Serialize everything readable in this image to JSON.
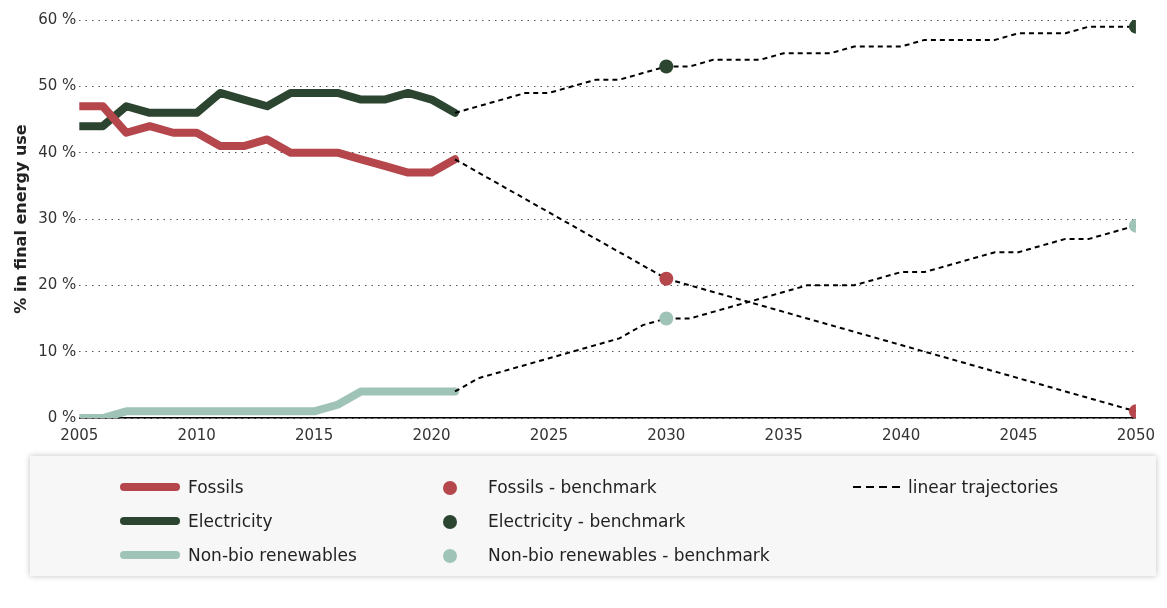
{
  "chart_data": {
    "type": "line",
    "ylabel": "% in final energy use",
    "xlim": [
      2005,
      2050
    ],
    "xticks": [
      2005,
      2010,
      2015,
      2020,
      2025,
      2030,
      2035,
      2040,
      2045,
      2050
    ],
    "ylim": [
      0,
      60
    ],
    "yticks": [
      {
        "value": 0,
        "label": "0 %"
      },
      {
        "value": 10,
        "label": "10 %"
      },
      {
        "value": 20,
        "label": "20 %"
      },
      {
        "value": 30,
        "label": "30 %"
      },
      {
        "value": 40,
        "label": "40 %"
      },
      {
        "value": 50,
        "label": "50 %"
      },
      {
        "value": 60,
        "label": "60 %"
      }
    ],
    "grid": "y",
    "legend": "bottom",
    "series": [
      {
        "name": "Fossils",
        "type": "line",
        "color": "#b5464b",
        "line_style": "solid",
        "marker": "none",
        "x": [
          2005,
          2006,
          2007,
          2008,
          2009,
          2010,
          2011,
          2012,
          2013,
          2014,
          2015,
          2016,
          2017,
          2018,
          2019,
          2020,
          2021
        ],
        "values": [
          47,
          47,
          43,
          44,
          43,
          43,
          41,
          41,
          42,
          40,
          40,
          40,
          39,
          38,
          37,
          37,
          39
        ]
      },
      {
        "name": "Electricity",
        "type": "line",
        "color": "#2c4530",
        "line_style": "solid",
        "marker": "none",
        "x": [
          2005,
          2006,
          2007,
          2008,
          2009,
          2010,
          2011,
          2012,
          2013,
          2014,
          2015,
          2016,
          2017,
          2018,
          2019,
          2020,
          2021
        ],
        "values": [
          44,
          44,
          47,
          46,
          46,
          46,
          49,
          48,
          47,
          49,
          49,
          49,
          48,
          48,
          49,
          48,
          46
        ]
      },
      {
        "name": "Non-bio renewables",
        "type": "line",
        "color": "#9fc4b7",
        "line_style": "solid",
        "marker": "none",
        "x": [
          2005,
          2006,
          2007,
          2008,
          2009,
          2010,
          2011,
          2012,
          2013,
          2014,
          2015,
          2016,
          2017,
          2018,
          2019,
          2020,
          2021
        ],
        "values": [
          0,
          0,
          1,
          1,
          1,
          1,
          1,
          1,
          1,
          1,
          1,
          2,
          4,
          4,
          4,
          4,
          4
        ]
      },
      {
        "name": "Fossils - benchmark",
        "type": "scatter",
        "color": "#b5464b",
        "marker": "circle",
        "x": [
          2030,
          2050
        ],
        "values": [
          21,
          1
        ]
      },
      {
        "name": "Electricity - benchmark",
        "type": "scatter",
        "color": "#2c4530",
        "marker": "circle",
        "x": [
          2030,
          2050
        ],
        "values": [
          53,
          59
        ]
      },
      {
        "name": "Non-bio renewables - benchmark",
        "type": "scatter",
        "color": "#9fc4b7",
        "marker": "circle",
        "x": [
          2030,
          2050
        ],
        "values": [
          15,
          29
        ]
      },
      {
        "name": "linear trajectories",
        "type": "line",
        "color": "#000000",
        "line_style": "dashed",
        "marker": "none",
        "x": [
          2021,
          2022,
          2023,
          2024,
          2025,
          2026,
          2027,
          2028,
          2029,
          2030,
          2031,
          2032,
          2033,
          2034,
          2035,
          2036,
          2037,
          2038,
          2039,
          2040,
          2041,
          2042,
          2043,
          2044,
          2045,
          2046,
          2047,
          2048,
          2049,
          2050
        ],
        "values": [
          46,
          47,
          48,
          49,
          49,
          50,
          51,
          51,
          52,
          53,
          53,
          54,
          54,
          54,
          55,
          55,
          55,
          56,
          56,
          56,
          57,
          57,
          57,
          57,
          58,
          58,
          58,
          59,
          59,
          59
        ]
      },
      {
        "type": "line",
        "color": "#000000",
        "line_style": "dashed",
        "marker": "none",
        "x": [
          2021,
          2022,
          2023,
          2024,
          2025,
          2026,
          2027,
          2028,
          2029,
          2030,
          2031,
          2032,
          2033,
          2034,
          2035,
          2036,
          2037,
          2038,
          2039,
          2040,
          2041,
          2042,
          2043,
          2044,
          2045,
          2046,
          2047,
          2048,
          2049,
          2050
        ],
        "values": [
          39,
          37,
          35,
          33,
          31,
          29,
          27,
          25,
          23,
          21,
          20,
          19,
          18,
          17,
          16,
          15,
          14,
          13,
          12,
          11,
          10,
          9,
          8,
          7,
          6,
          5,
          4,
          3,
          2,
          1
        ]
      },
      {
        "type": "line",
        "color": "#000000",
        "line_style": "dashed",
        "marker": "none",
        "x": [
          2021,
          2022,
          2023,
          2024,
          2025,
          2026,
          2027,
          2028,
          2029,
          2030,
          2031,
          2032,
          2033,
          2034,
          2035,
          2036,
          2037,
          2038,
          2039,
          2040,
          2041,
          2042,
          2043,
          2044,
          2045,
          2046,
          2047,
          2048,
          2049,
          2050
        ],
        "values": [
          4,
          6,
          7,
          8,
          9,
          10,
          11,
          12,
          14,
          15,
          15,
          16,
          17,
          18,
          19,
          20,
          20,
          20,
          21,
          22,
          22,
          23,
          24,
          25,
          25,
          26,
          27,
          27,
          28,
          29
        ]
      }
    ]
  }
}
